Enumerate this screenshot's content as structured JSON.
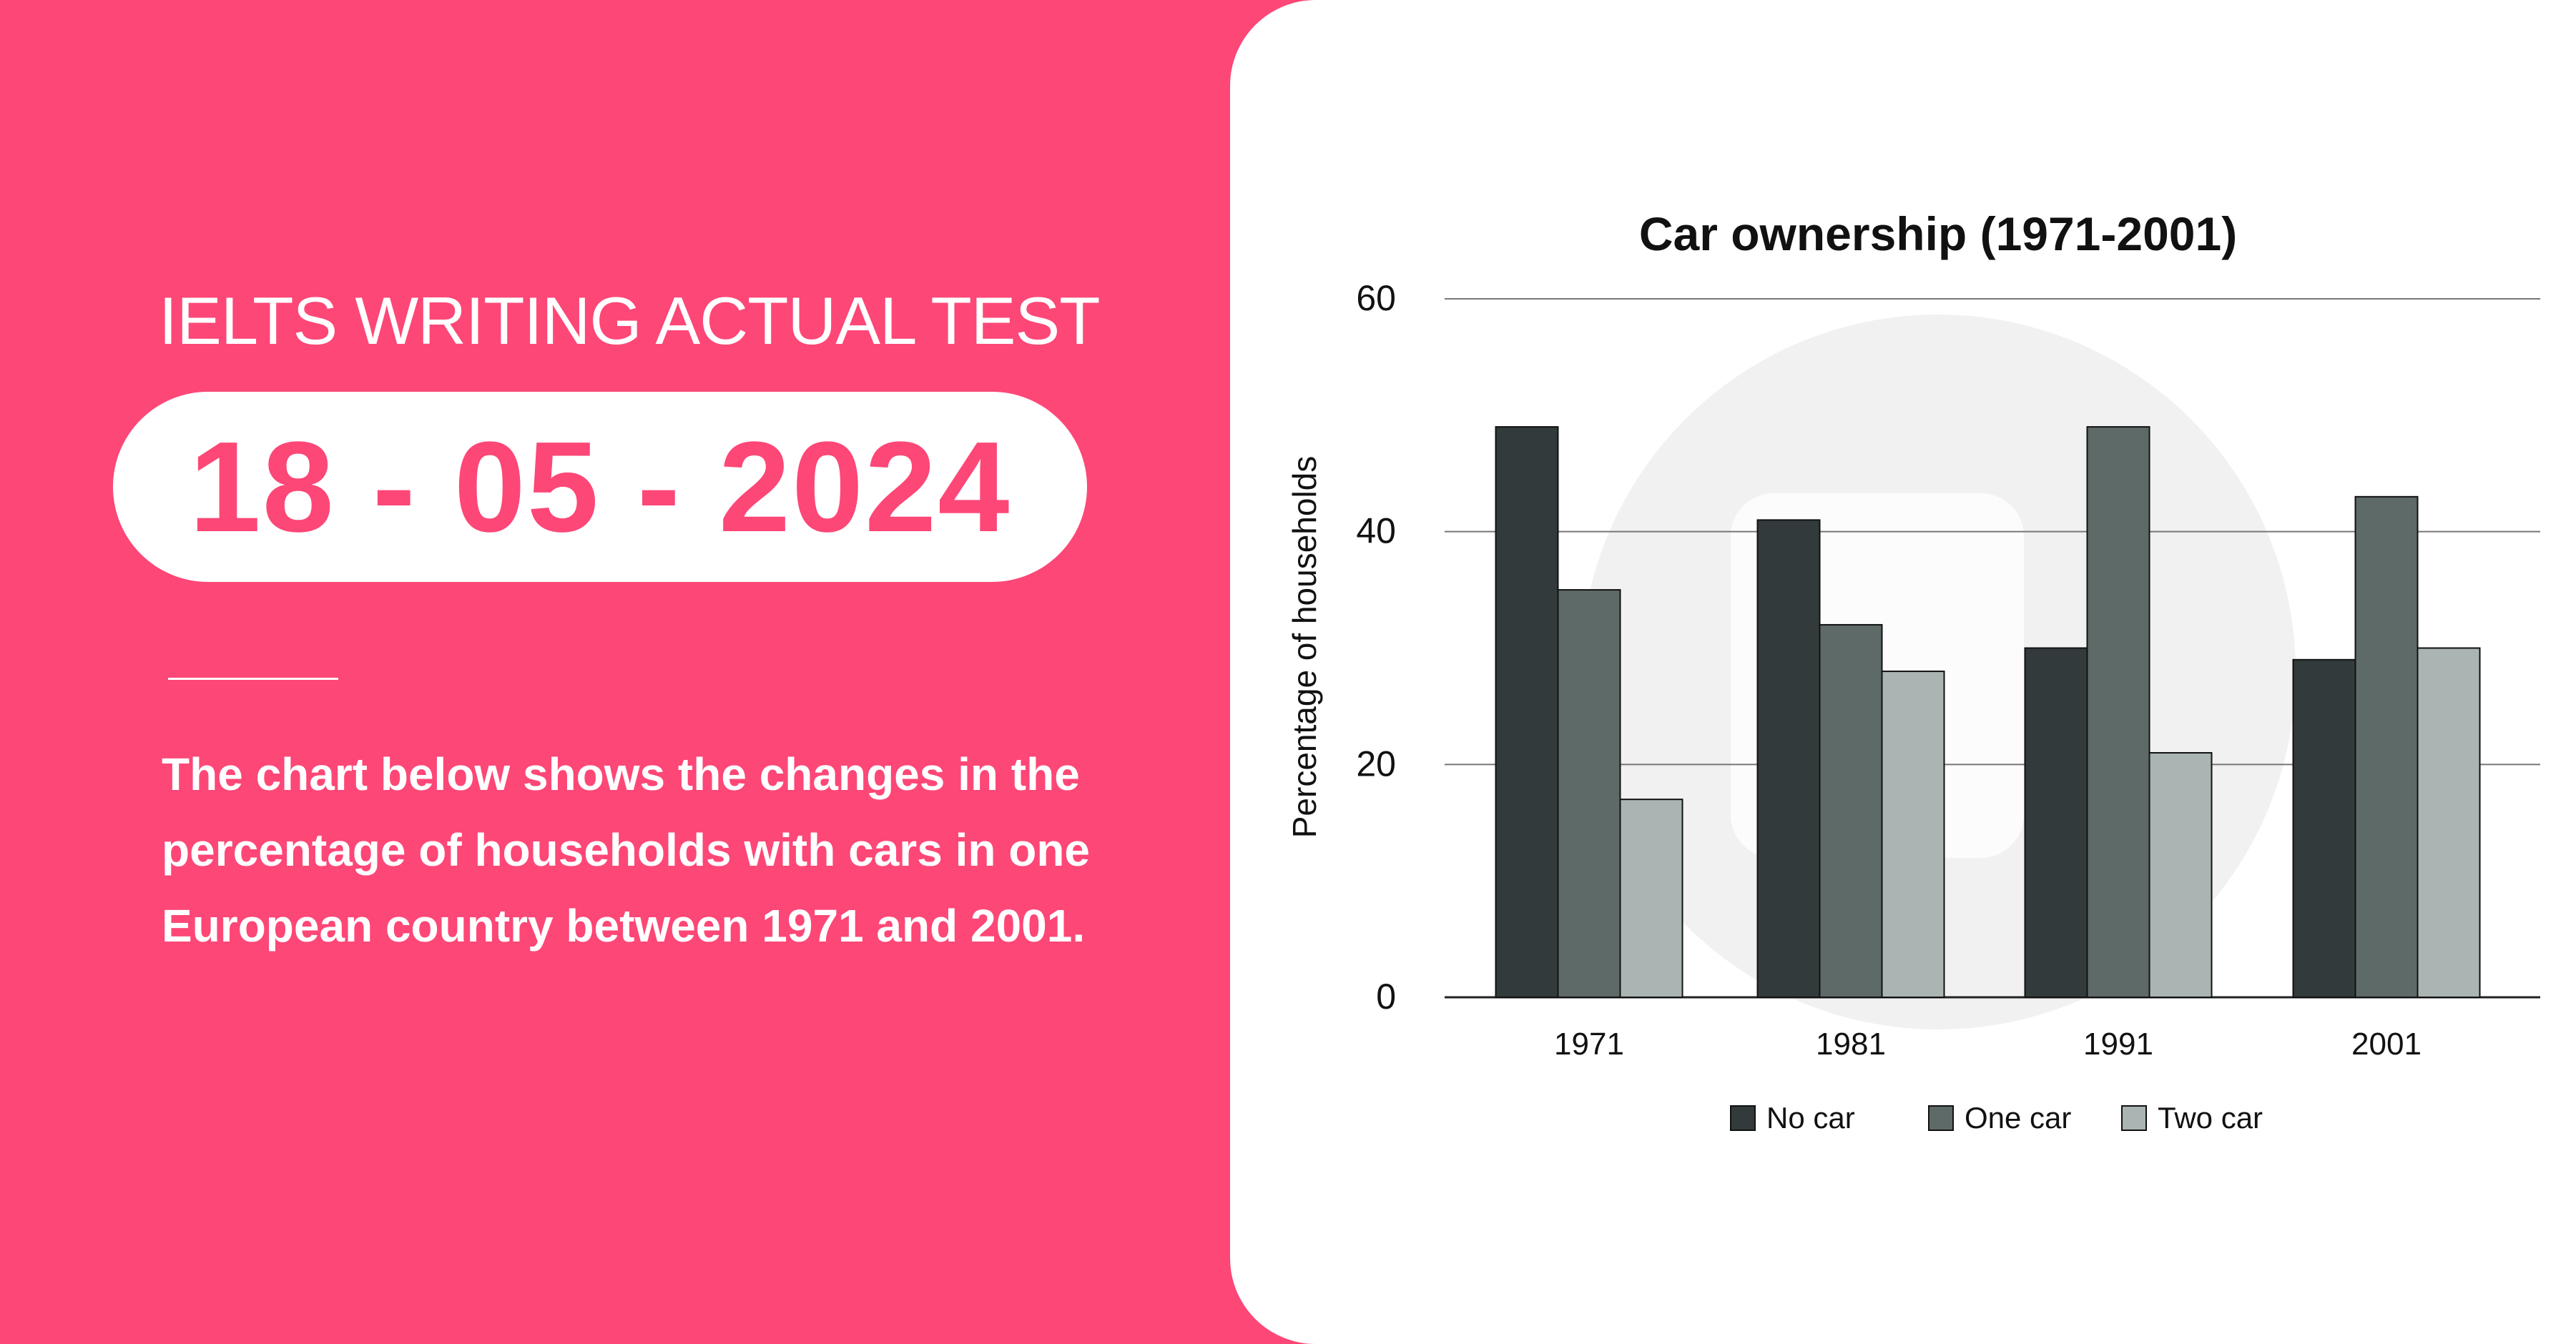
{
  "header": {
    "label": "IELTS WRITING ACTUAL TEST",
    "date": "18 - 05 - 2024"
  },
  "description": "The chart below shows the changes in the percentage of households with cars in one European country between 1971 and 2001.",
  "colors": {
    "background": "#fd4777",
    "card": "#ffffff",
    "no_car": "#323a3b",
    "one_car": "#5e6a68",
    "two_car": "#aab5b3"
  },
  "chart_data": {
    "type": "bar",
    "title": "Car ownership (1971-2001)",
    "xlabel": "",
    "ylabel": "Percentage of households",
    "ylim": [
      0,
      60
    ],
    "yticks": [
      0,
      20,
      40,
      60
    ],
    "grid": true,
    "legend_position": "bottom",
    "categories": [
      "1971",
      "1981",
      "1991",
      "2001"
    ],
    "series": [
      {
        "name": "No car",
        "color": "#323a3b",
        "values": [
          49,
          41,
          30,
          29
        ]
      },
      {
        "name": "One car",
        "color": "#5e6a68",
        "values": [
          35,
          32,
          49,
          43
        ]
      },
      {
        "name": "Two car",
        "color": "#aab5b3",
        "values": [
          17,
          28,
          21,
          30
        ]
      }
    ]
  }
}
